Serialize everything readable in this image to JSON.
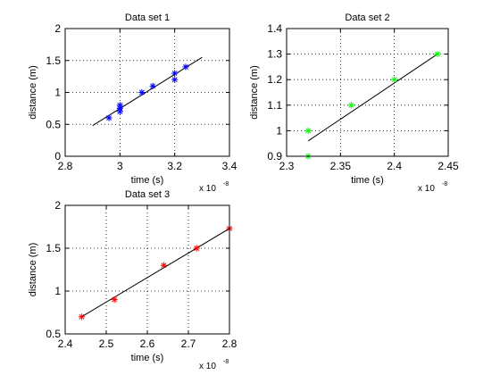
{
  "chart_data": [
    {
      "type": "scatter",
      "title": "Data set 1",
      "xlabel": "time (s)",
      "ylabel": "distance (m)",
      "xlim": [
        2.8,
        3.4
      ],
      "ylim": [
        0,
        2
      ],
      "xticks": [
        "2.8",
        "3",
        "3.2",
        "3.4"
      ],
      "yticks": [
        "0",
        "0.5",
        "1",
        "1.5",
        "2"
      ],
      "x_multiplier": {
        "base": "x 10",
        "exponent": "-8"
      },
      "grid": true,
      "marker": "asterisk",
      "marker_color": "#0000ff",
      "points": {
        "x": [
          2.96,
          3.0,
          3.0,
          3.0,
          3.08,
          3.12,
          3.2,
          3.2,
          3.24
        ],
        "y": [
          0.6,
          0.7,
          0.75,
          0.8,
          1.0,
          1.1,
          1.2,
          1.3,
          1.4
        ]
      },
      "fit_line": {
        "x": [
          2.9,
          3.3
        ],
        "y": [
          0.48,
          1.55
        ],
        "color": "#000000"
      }
    },
    {
      "type": "scatter",
      "title": "Data set 2",
      "xlabel": "time (s)",
      "ylabel": "distance (m)",
      "xlim": [
        2.3,
        2.45
      ],
      "ylim": [
        0.9,
        1.4
      ],
      "xticks": [
        "2.3",
        "2.35",
        "2.4",
        "2.45"
      ],
      "yticks": [
        "0.9",
        "1",
        "1.1",
        "1.2",
        "1.3",
        "1.4"
      ],
      "x_multiplier": {
        "base": "x 10",
        "exponent": "-8"
      },
      "grid": true,
      "marker": "asterisk",
      "marker_color": "#00ff00",
      "points": {
        "x": [
          2.32,
          2.32,
          2.36,
          2.4,
          2.44
        ],
        "y": [
          0.9,
          1.0,
          1.1,
          1.2,
          1.3
        ]
      },
      "fit_line": {
        "x": [
          2.32,
          2.44
        ],
        "y": [
          0.96,
          1.3
        ],
        "color": "#000000"
      }
    },
    {
      "type": "scatter",
      "title": "Data set 3",
      "xlabel": "time (s)",
      "ylabel": "distance (m)",
      "xlim": [
        2.4,
        2.8
      ],
      "ylim": [
        0.5,
        2
      ],
      "xticks": [
        "2.4",
        "2.5",
        "2.6",
        "2.7",
        "2.8"
      ],
      "yticks": [
        "0.5",
        "1",
        "1.5",
        "2"
      ],
      "x_multiplier": {
        "base": "x 10",
        "exponent": "-8"
      },
      "grid": true,
      "marker": "asterisk",
      "marker_color": "#ff0000",
      "points": {
        "x": [
          2.44,
          2.52,
          2.64,
          2.72,
          2.8
        ],
        "y": [
          0.7,
          0.9,
          1.3,
          1.5,
          1.73
        ]
      },
      "fit_line": {
        "x": [
          2.44,
          2.8
        ],
        "y": [
          0.7,
          1.73
        ],
        "color": "#000000"
      }
    }
  ]
}
